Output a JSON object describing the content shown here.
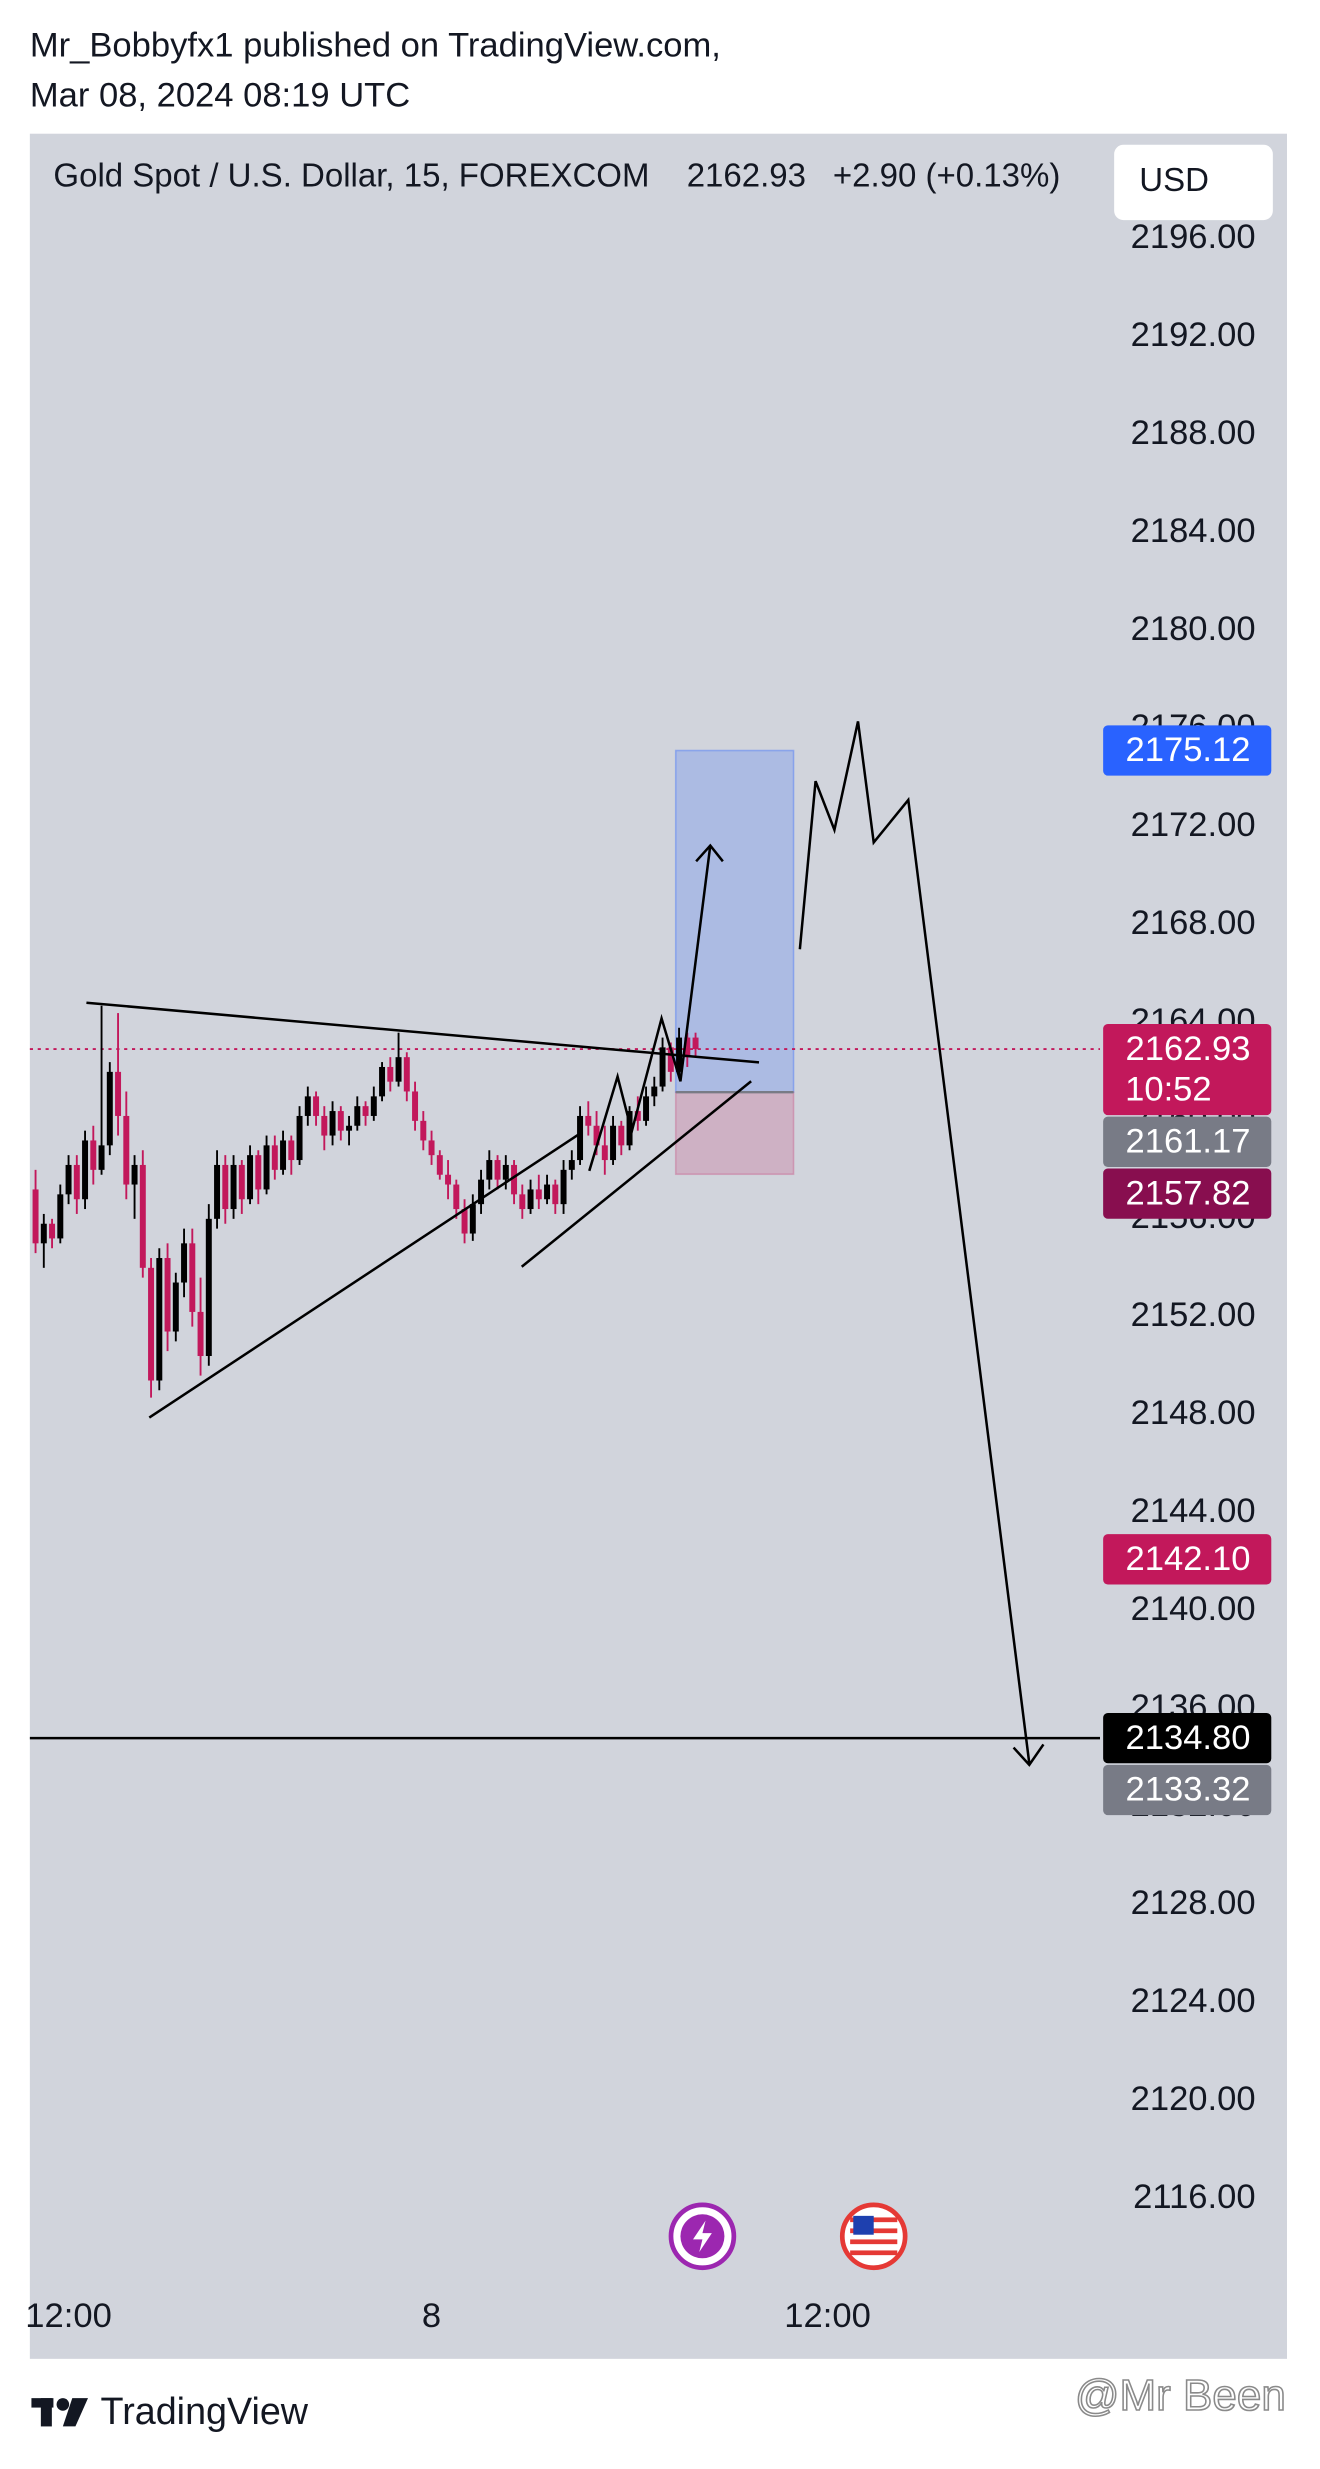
{
  "header": {
    "author_line": "Mr_Bobbyfx1 published on TradingView.com,",
    "date_line": "Mar 08, 2024 08:19 UTC"
  },
  "chart_data": {
    "type": "candlestick",
    "title": "Gold Spot / U.S. Dollar, 15, FOREXCOM",
    "last_price": "2162.93",
    "change": "+2.90 (+0.13%)",
    "currency": "USD",
    "up_color": "#000000",
    "down_color": "#c2185b",
    "grid": false,
    "categories": [
      null,
      null,
      null,
      null,
      "12:00",
      null,
      null,
      null,
      null,
      null,
      null,
      null,
      null,
      null,
      null,
      null,
      null,
      null,
      null,
      null,
      null,
      null,
      null,
      null,
      null,
      null,
      null,
      null,
      null,
      null,
      null,
      null,
      null,
      null,
      null,
      null,
      null,
      null,
      null,
      null,
      null,
      null,
      null,
      null,
      null,
      null,
      null,
      null,
      "8",
      null,
      null,
      null,
      null,
      null,
      null,
      null,
      null,
      null,
      null,
      null,
      null,
      null,
      null,
      null,
      null,
      null,
      null,
      null,
      null,
      null,
      null,
      null,
      null,
      null,
      null,
      null,
      null,
      null,
      null,
      null,
      null,
      null,
      null,
      null,
      null,
      null,
      null,
      null,
      null,
      null,
      null,
      null,
      null,
      null,
      null,
      null,
      "12:00",
      null,
      null,
      null,
      null,
      null,
      null,
      null,
      null,
      null,
      null,
      null,
      null,
      null,
      null,
      null,
      null,
      null,
      null,
      null,
      null,
      null,
      null,
      null,
      null,
      null,
      null,
      null,
      null,
      null,
      null,
      null,
      null,
      null
    ],
    "candles": [
      [
        2157.2,
        2158.0,
        2154.6,
        2155.0
      ],
      [
        2155.0,
        2156.2,
        2154.0,
        2155.8
      ],
      [
        2155.8,
        2156.0,
        2154.8,
        2155.2
      ],
      [
        2155.2,
        2157.4,
        2155.0,
        2157.0
      ],
      [
        2157.0,
        2158.6,
        2156.6,
        2158.2
      ],
      [
        2158.2,
        2158.6,
        2156.2,
        2156.8
      ],
      [
        2156.8,
        2159.6,
        2156.4,
        2159.2
      ],
      [
        2159.2,
        2159.8,
        2157.4,
        2158.0
      ],
      [
        2158.0,
        2164.7,
        2157.8,
        2159.0
      ],
      [
        2159.0,
        2162.4,
        2158.6,
        2162.0
      ],
      [
        2162.0,
        2164.4,
        2159.4,
        2160.2
      ],
      [
        2160.2,
        2161.2,
        2156.8,
        2157.4
      ],
      [
        2157.4,
        2158.6,
        2156.0,
        2158.2
      ],
      [
        2158.2,
        2158.8,
        2153.6,
        2154.0
      ],
      [
        2154.0,
        2154.4,
        2148.7,
        2149.4
      ],
      [
        2149.4,
        2154.8,
        2149.0,
        2154.4
      ],
      [
        2154.4,
        2155.0,
        2150.6,
        2151.4
      ],
      [
        2151.4,
        2153.8,
        2151.0,
        2153.4
      ],
      [
        2153.4,
        2155.6,
        2152.8,
        2155.0
      ],
      [
        2155.0,
        2155.6,
        2151.6,
        2152.2
      ],
      [
        2152.2,
        2153.6,
        2149.6,
        2150.4
      ],
      [
        2150.4,
        2156.6,
        2150.0,
        2156.0
      ],
      [
        2156.0,
        2158.8,
        2155.6,
        2158.2
      ],
      [
        2158.2,
        2158.6,
        2155.8,
        2156.4
      ],
      [
        2156.4,
        2158.6,
        2156.0,
        2158.2
      ],
      [
        2158.2,
        2158.4,
        2156.2,
        2156.8
      ],
      [
        2156.8,
        2159.0,
        2156.6,
        2158.6
      ],
      [
        2158.6,
        2158.8,
        2156.6,
        2157.2
      ],
      [
        2157.2,
        2159.4,
        2157.0,
        2159.0
      ],
      [
        2159.0,
        2159.4,
        2157.6,
        2158.0
      ],
      [
        2158.0,
        2159.6,
        2157.8,
        2159.2
      ],
      [
        2159.2,
        2159.4,
        2157.8,
        2158.4
      ],
      [
        2158.4,
        2160.6,
        2158.2,
        2160.2
      ],
      [
        2160.2,
        2161.4,
        2159.8,
        2161.0
      ],
      [
        2161.0,
        2161.2,
        2159.8,
        2160.2
      ],
      [
        2160.2,
        2160.6,
        2158.8,
        2159.4
      ],
      [
        2159.4,
        2160.8,
        2159.0,
        2160.4
      ],
      [
        2160.4,
        2160.6,
        2159.2,
        2159.6
      ],
      [
        2159.6,
        2160.2,
        2159.0,
        2159.8
      ],
      [
        2159.8,
        2161.0,
        2159.6,
        2160.6
      ],
      [
        2160.6,
        2160.8,
        2159.8,
        2160.2
      ],
      [
        2160.2,
        2161.4,
        2160.0,
        2161.0
      ],
      [
        2161.0,
        2162.4,
        2160.8,
        2162.2
      ],
      [
        2162.2,
        2162.6,
        2161.2,
        2161.6
      ],
      [
        2161.6,
        2163.6,
        2161.4,
        2162.6
      ],
      [
        2162.6,
        2162.8,
        2160.8,
        2161.2
      ],
      [
        2161.2,
        2161.6,
        2159.6,
        2160.0
      ],
      [
        2160.0,
        2160.4,
        2158.8,
        2159.2
      ],
      [
        2159.2,
        2159.6,
        2158.2,
        2158.6
      ],
      [
        2158.6,
        2158.8,
        2157.6,
        2157.8
      ],
      [
        2157.8,
        2158.4,
        2156.8,
        2157.4
      ],
      [
        2157.4,
        2157.6,
        2156.0,
        2156.4
      ],
      [
        2156.4,
        2156.8,
        2155.0,
        2155.4
      ],
      [
        2155.4,
        2157.0,
        2155.1,
        2156.6
      ],
      [
        2156.6,
        2158.0,
        2156.2,
        2157.6
      ],
      [
        2157.6,
        2158.8,
        2157.2,
        2158.4
      ],
      [
        2158.4,
        2158.6,
        2157.2,
        2157.6
      ],
      [
        2157.6,
        2158.6,
        2157.2,
        2158.2
      ],
      [
        2158.2,
        2158.4,
        2156.6,
        2157.0
      ],
      [
        2157.0,
        2157.4,
        2156.0,
        2156.4
      ],
      [
        2156.4,
        2157.6,
        2156.2,
        2157.2
      ],
      [
        2157.2,
        2157.8,
        2156.4,
        2156.8
      ],
      [
        2156.8,
        2157.8,
        2156.6,
        2157.4
      ],
      [
        2157.4,
        2157.6,
        2156.2,
        2156.6
      ],
      [
        2156.6,
        2158.4,
        2156.2,
        2158.0
      ],
      [
        2158.0,
        2158.8,
        2157.6,
        2158.4
      ],
      [
        2158.4,
        2160.6,
        2158.2,
        2160.2
      ],
      [
        2160.2,
        2160.8,
        2159.4,
        2159.8
      ],
      [
        2159.8,
        2160.4,
        2158.6,
        2159.0
      ],
      [
        2159.0,
        2159.8,
        2157.8,
        2158.4
      ],
      [
        2158.4,
        2160.2,
        2158.2,
        2159.8
      ],
      [
        2159.8,
        2160.0,
        2158.6,
        2159.0
      ],
      [
        2159.0,
        2160.6,
        2158.8,
        2160.4
      ],
      [
        2160.4,
        2161.0,
        2159.6,
        2160.0
      ],
      [
        2160.0,
        2161.4,
        2159.8,
        2161.0
      ],
      [
        2161.0,
        2161.8,
        2160.6,
        2161.4
      ],
      [
        2161.4,
        2163.4,
        2161.2,
        2163.0
      ],
      [
        2163.0,
        2163.2,
        2161.6,
        2162.0
      ],
      [
        2162.0,
        2163.8,
        2161.8,
        2163.4
      ],
      [
        2163.4,
        2163.6,
        2162.2,
        2162.6
      ],
      [
        2163.4,
        2163.6,
        2162.6,
        2162.93
      ],
      null,
      null,
      null,
      null,
      null,
      null,
      null,
      null,
      null,
      null,
      null,
      null,
      null,
      null,
      null,
      null,
      null,
      null,
      null,
      null,
      null,
      null,
      null,
      null,
      null,
      null,
      null,
      null,
      null,
      null,
      null,
      null,
      null,
      null,
      null,
      null,
      null,
      null,
      null,
      null,
      null,
      null,
      null,
      null,
      null,
      null,
      null,
      null,
      null
    ],
    "ylim": [
      2112.41,
      2200.3
    ],
    "yticks": [
      {
        "value": 2116,
        "label": "2116.00"
      },
      {
        "value": 2120,
        "label": "2120.00"
      },
      {
        "value": 2124,
        "label": "2124.00"
      },
      {
        "value": 2128,
        "label": "2128.00"
      },
      {
        "value": 2132,
        "label": "2132.00"
      },
      {
        "value": 2136,
        "label": "2136.00"
      },
      {
        "value": 2140,
        "label": "2140.00"
      },
      {
        "value": 2144,
        "label": "2144.00"
      },
      {
        "value": 2148,
        "label": "2148.00"
      },
      {
        "value": 2152,
        "label": "2152.00"
      },
      {
        "value": 2156,
        "label": "2156.00"
      },
      {
        "value": 2160,
        "label": "2160.00"
      },
      {
        "value": 2164,
        "label": "2164.00"
      },
      {
        "value": 2168,
        "label": "2168.00"
      },
      {
        "value": 2172,
        "label": "2172.00"
      },
      {
        "value": 2176,
        "label": "2176.00"
      },
      {
        "value": 2180,
        "label": "2180.00"
      },
      {
        "value": 2184,
        "label": "2184.00"
      },
      {
        "value": 2188,
        "label": "2188.00"
      },
      {
        "value": 2192,
        "label": "2192.00"
      },
      {
        "value": 2196,
        "label": "2196.00"
      }
    ],
    "price_labels": [
      {
        "value": 2175.12,
        "label": "2175.12",
        "color": "#2962ff"
      },
      {
        "value": 2162.93,
        "label": "2162.93",
        "color": "#c2185b"
      },
      {
        "value": 2161.17,
        "label": "2161.17",
        "color": "#787b86"
      },
      {
        "value": 2157.82,
        "label": "2157.82",
        "color": "#880e4f"
      },
      {
        "value": 2142.1,
        "label": "2142.10",
        "color": "#c2185b"
      },
      {
        "value": 2134.8,
        "label": "2134.80",
        "color": "#000000"
      },
      {
        "value": 2133.32,
        "label": "2133.32",
        "color": "#787b86"
      }
    ],
    "countdown": "10:52"
  },
  "footer": {
    "brand": "TradingView",
    "watermark": "@Mr Been"
  }
}
